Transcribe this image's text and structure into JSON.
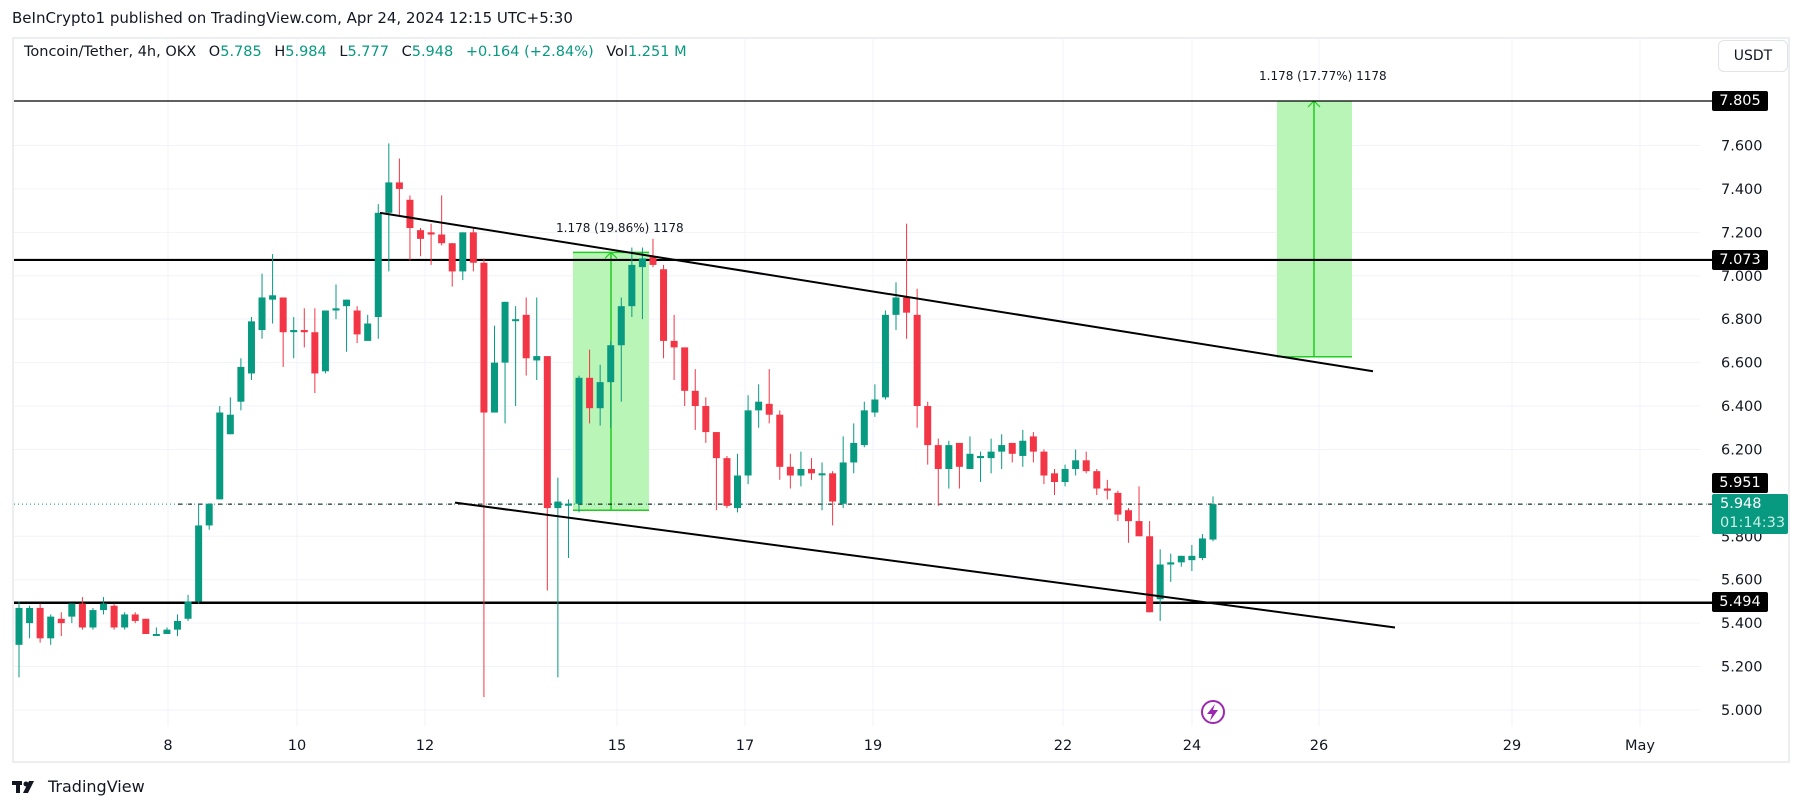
{
  "header": {
    "published": "BeInCrypto1 published on TradingView.com, Apr 24, 2024 12:15 UTC+5:30"
  },
  "legend": {
    "symbol": "Toncoin/Tether, 4h, OKX",
    "open_label": "O",
    "open": "5.785",
    "high_label": "H",
    "high": "5.984",
    "low_label": "L",
    "low": "5.777",
    "close_label": "C",
    "close": "5.948",
    "change": "+0.164 (+2.84%)",
    "vol_label": "Vol",
    "vol": "1.251 M"
  },
  "currency_button": "USDT",
  "price_tags": {
    "target": "7.805",
    "resistance": "7.073",
    "high_line": "5.951",
    "support": "5.494",
    "current_price": "5.948",
    "countdown": "01:14:33"
  },
  "annotations": {
    "measure_1": "1.178 (19.86%) 1178",
    "measure_2": "1.178 (17.77%) 1178"
  },
  "footer": {
    "brand": "TradingView"
  },
  "colors": {
    "up": "#089981",
    "down": "#f23645",
    "measure_fill": "#b9f5b7",
    "measure_line": "#22cc22",
    "flash_icon": "#9c27b0"
  },
  "chart_data": {
    "type": "candlestick",
    "title": "Toncoin/Tether, 4h, OKX",
    "xlabel": "",
    "ylabel": "USDT",
    "ylim": [
      4.9,
      7.95
    ],
    "y_ticks": [
      "7.600",
      "7.400",
      "7.200",
      "7.000",
      "6.800",
      "6.600",
      "6.400",
      "6.200",
      "5.800",
      "5.600",
      "5.400",
      "5.200",
      "5.000"
    ],
    "x_ticks": [
      "8",
      "10",
      "12",
      "15",
      "17",
      "19",
      "22",
      "24",
      "26",
      "29",
      "May"
    ],
    "grid": true,
    "horizontal_levels": [
      7.805,
      7.073,
      5.494
    ],
    "current_price": 5.948,
    "last_high_line": 5.951,
    "trendlines": [
      {
        "name": "upper channel",
        "from": {
          "date": "Apr 11.7",
          "price": 7.29
        },
        "to": {
          "date": "Apr 27.8",
          "price": 6.56
        }
      },
      {
        "name": "lower channel",
        "from": {
          "date": "Apr 12.5",
          "price": 5.95
        },
        "to": {
          "date": "Apr 28",
          "price": 5.38
        }
      }
    ],
    "measurements": [
      {
        "label": "1.178 (19.86%) 1178",
        "from_price": 5.93,
        "to_price": 7.108,
        "start": "Apr 14.5",
        "end": "Apr 15.6"
      },
      {
        "label": "1.178 (17.77%) 1178",
        "from_price": 6.627,
        "to_price": 7.805,
        "start": "Apr 25.4",
        "end": "Apr 26.5"
      }
    ],
    "candles": [
      {
        "o": 5.3,
        "h": 5.5,
        "l": 5.15,
        "c": 5.47
      },
      {
        "o": 5.4,
        "h": 5.48,
        "l": 5.33,
        "c": 5.47
      },
      {
        "o": 5.47,
        "h": 5.49,
        "l": 5.31,
        "c": 5.33
      },
      {
        "o": 5.33,
        "h": 5.44,
        "l": 5.3,
        "c": 5.43
      },
      {
        "o": 5.42,
        "h": 5.45,
        "l": 5.34,
        "c": 5.4
      },
      {
        "o": 5.43,
        "h": 5.49,
        "l": 5.4,
        "c": 5.49
      },
      {
        "o": 5.49,
        "h": 5.52,
        "l": 5.37,
        "c": 5.38
      },
      {
        "o": 5.38,
        "h": 5.47,
        "l": 5.37,
        "c": 5.46
      },
      {
        "o": 5.46,
        "h": 5.52,
        "l": 5.44,
        "c": 5.49
      },
      {
        "o": 5.48,
        "h": 5.49,
        "l": 5.37,
        "c": 5.38
      },
      {
        "o": 5.38,
        "h": 5.45,
        "l": 5.37,
        "c": 5.44
      },
      {
        "o": 5.44,
        "h": 5.45,
        "l": 5.4,
        "c": 5.41
      },
      {
        "o": 5.42,
        "h": 5.42,
        "l": 5.35,
        "c": 5.35
      },
      {
        "o": 5.35,
        "h": 5.38,
        "l": 5.35,
        "c": 5.35
      },
      {
        "o": 5.35,
        "h": 5.38,
        "l": 5.35,
        "c": 5.37
      },
      {
        "o": 5.37,
        "h": 5.44,
        "l": 5.34,
        "c": 5.41
      },
      {
        "o": 5.42,
        "h": 5.53,
        "l": 5.41,
        "c": 5.5
      },
      {
        "o": 5.5,
        "h": 5.95,
        "l": 5.49,
        "c": 5.85
      },
      {
        "o": 5.85,
        "h": 5.95,
        "l": 5.83,
        "c": 5.95
      },
      {
        "o": 5.97,
        "h": 6.4,
        "l": 5.97,
        "c": 6.37
      },
      {
        "o": 6.27,
        "h": 6.44,
        "l": 6.27,
        "c": 6.36
      },
      {
        "o": 6.42,
        "h": 6.62,
        "l": 6.38,
        "c": 6.58
      },
      {
        "o": 6.55,
        "h": 6.81,
        "l": 6.52,
        "c": 6.79
      },
      {
        "o": 6.75,
        "h": 7.01,
        "l": 6.71,
        "c": 6.9
      },
      {
        "o": 6.89,
        "h": 7.1,
        "l": 6.78,
        "c": 6.91
      },
      {
        "o": 6.9,
        "h": 6.9,
        "l": 6.58,
        "c": 6.74
      },
      {
        "o": 6.74,
        "h": 6.81,
        "l": 6.62,
        "c": 6.75
      },
      {
        "o": 6.75,
        "h": 6.85,
        "l": 6.67,
        "c": 6.74
      },
      {
        "o": 6.74,
        "h": 6.85,
        "l": 6.46,
        "c": 6.55
      },
      {
        "o": 6.56,
        "h": 6.83,
        "l": 6.55,
        "c": 6.84
      },
      {
        "o": 6.84,
        "h": 6.96,
        "l": 6.8,
        "c": 6.85
      },
      {
        "o": 6.86,
        "h": 6.89,
        "l": 6.65,
        "c": 6.89
      },
      {
        "o": 6.84,
        "h": 6.86,
        "l": 6.69,
        "c": 6.73
      },
      {
        "o": 6.7,
        "h": 6.82,
        "l": 6.7,
        "c": 6.78
      },
      {
        "o": 6.81,
        "h": 7.33,
        "l": 6.71,
        "c": 7.29
      },
      {
        "o": 7.29,
        "h": 7.61,
        "l": 7.02,
        "c": 7.43
      },
      {
        "o": 7.43,
        "h": 7.54,
        "l": 7.28,
        "c": 7.4
      },
      {
        "o": 7.35,
        "h": 7.37,
        "l": 7.07,
        "c": 7.22
      },
      {
        "o": 7.21,
        "h": 7.22,
        "l": 7.09,
        "c": 7.17
      },
      {
        "o": 7.2,
        "h": 7.24,
        "l": 7.05,
        "c": 7.19
      },
      {
        "o": 7.19,
        "h": 7.37,
        "l": 7.14,
        "c": 7.15
      },
      {
        "o": 7.15,
        "h": 7.15,
        "l": 6.95,
        "c": 7.02
      },
      {
        "o": 7.02,
        "h": 7.2,
        "l": 6.98,
        "c": 7.2
      },
      {
        "o": 7.2,
        "h": 7.22,
        "l": 7.02,
        "c": 7.06
      },
      {
        "o": 7.06,
        "h": 7.08,
        "l": 5.06,
        "c": 6.37
      },
      {
        "o": 6.37,
        "h": 6.77,
        "l": 6.37,
        "c": 6.6
      },
      {
        "o": 6.6,
        "h": 6.83,
        "l": 6.32,
        "c": 6.88
      },
      {
        "o": 6.8,
        "h": 6.86,
        "l": 6.4,
        "c": 6.8
      },
      {
        "o": 6.82,
        "h": 6.9,
        "l": 6.54,
        "c": 6.62
      },
      {
        "o": 6.61,
        "h": 6.9,
        "l": 6.52,
        "c": 6.63
      },
      {
        "o": 6.63,
        "h": 6.6,
        "l": 5.55,
        "c": 5.93
      },
      {
        "o": 5.93,
        "h": 6.07,
        "l": 5.15,
        "c": 5.96
      },
      {
        "o": 5.95,
        "h": 5.97,
        "l": 5.7,
        "c": 5.95
      },
      {
        "o": 5.95,
        "h": 6.54,
        "l": 5.91,
        "c": 6.53
      },
      {
        "o": 6.53,
        "h": 6.66,
        "l": 6.32,
        "c": 6.39
      },
      {
        "o": 6.39,
        "h": 6.59,
        "l": 6.31,
        "c": 6.51
      },
      {
        "o": 6.51,
        "h": 6.7,
        "l": 6.3,
        "c": 6.68
      },
      {
        "o": 6.68,
        "h": 6.9,
        "l": 6.42,
        "c": 6.86
      },
      {
        "o": 6.86,
        "h": 7.13,
        "l": 6.81,
        "c": 7.05
      },
      {
        "o": 7.04,
        "h": 7.13,
        "l": 6.8,
        "c": 7.08
      },
      {
        "o": 7.09,
        "h": 7.17,
        "l": 7.04,
        "c": 7.05
      },
      {
        "o": 7.03,
        "h": 7.05,
        "l": 6.62,
        "c": 6.7
      },
      {
        "o": 6.7,
        "h": 6.82,
        "l": 6.52,
        "c": 6.67
      },
      {
        "o": 6.67,
        "h": 6.65,
        "l": 6.4,
        "c": 6.47
      },
      {
        "o": 6.47,
        "h": 6.57,
        "l": 6.29,
        "c": 6.4
      },
      {
        "o": 6.4,
        "h": 6.44,
        "l": 6.23,
        "c": 6.28
      },
      {
        "o": 6.28,
        "h": 6.27,
        "l": 5.92,
        "c": 6.16
      },
      {
        "o": 6.16,
        "h": 6.17,
        "l": 5.93,
        "c": 5.94
      },
      {
        "o": 5.93,
        "h": 6.18,
        "l": 5.91,
        "c": 6.08
      },
      {
        "o": 6.08,
        "h": 6.45,
        "l": 6.04,
        "c": 6.38
      },
      {
        "o": 6.38,
        "h": 6.5,
        "l": 6.3,
        "c": 6.42
      },
      {
        "o": 6.41,
        "h": 6.57,
        "l": 6.32,
        "c": 6.36
      },
      {
        "o": 6.36,
        "h": 6.38,
        "l": 6.06,
        "c": 6.12
      },
      {
        "o": 6.12,
        "h": 6.18,
        "l": 6.02,
        "c": 6.08
      },
      {
        "o": 6.08,
        "h": 6.19,
        "l": 6.03,
        "c": 6.11
      },
      {
        "o": 6.11,
        "h": 6.16,
        "l": 6.06,
        "c": 6.09
      },
      {
        "o": 6.09,
        "h": 6.14,
        "l": 5.92,
        "c": 6.09
      },
      {
        "o": 6.09,
        "h": 6.1,
        "l": 5.85,
        "c": 5.96
      },
      {
        "o": 5.95,
        "h": 6.26,
        "l": 5.93,
        "c": 6.14
      },
      {
        "o": 6.14,
        "h": 6.32,
        "l": 6.09,
        "c": 6.23
      },
      {
        "o": 6.22,
        "h": 6.42,
        "l": 6.21,
        "c": 6.38
      },
      {
        "o": 6.37,
        "h": 6.5,
        "l": 6.35,
        "c": 6.43
      },
      {
        "o": 6.44,
        "h": 6.84,
        "l": 6.43,
        "c": 6.82
      },
      {
        "o": 6.82,
        "h": 6.97,
        "l": 6.75,
        "c": 6.9
      },
      {
        "o": 6.9,
        "h": 7.24,
        "l": 6.71,
        "c": 6.83
      },
      {
        "o": 6.82,
        "h": 6.94,
        "l": 6.3,
        "c": 6.4
      },
      {
        "o": 6.4,
        "h": 6.42,
        "l": 6.13,
        "c": 6.22
      },
      {
        "o": 6.22,
        "h": 6.25,
        "l": 5.94,
        "c": 6.11
      },
      {
        "o": 6.11,
        "h": 6.24,
        "l": 6.02,
        "c": 6.22
      },
      {
        "o": 6.23,
        "h": 6.2,
        "l": 6.02,
        "c": 6.12
      },
      {
        "o": 6.11,
        "h": 6.26,
        "l": 6.12,
        "c": 6.18
      },
      {
        "o": 6.16,
        "h": 6.19,
        "l": 6.05,
        "c": 6.17
      },
      {
        "o": 6.16,
        "h": 6.25,
        "l": 6.09,
        "c": 6.19
      },
      {
        "o": 6.19,
        "h": 6.27,
        "l": 6.11,
        "c": 6.22
      },
      {
        "o": 6.23,
        "h": 6.2,
        "l": 6.14,
        "c": 6.18
      },
      {
        "o": 6.17,
        "h": 6.29,
        "l": 6.12,
        "c": 6.24
      },
      {
        "o": 6.26,
        "h": 6.28,
        "l": 6.14,
        "c": 6.19
      },
      {
        "o": 6.19,
        "h": 6.2,
        "l": 6.04,
        "c": 6.08
      },
      {
        "o": 6.09,
        "h": 6.11,
        "l": 5.99,
        "c": 6.05
      },
      {
        "o": 6.05,
        "h": 6.13,
        "l": 6.03,
        "c": 6.11
      },
      {
        "o": 6.11,
        "h": 6.2,
        "l": 6.08,
        "c": 6.15
      },
      {
        "o": 6.15,
        "h": 6.19,
        "l": 6.09,
        "c": 6.1
      },
      {
        "o": 6.1,
        "h": 6.11,
        "l": 5.99,
        "c": 6.02
      },
      {
        "o": 6.02,
        "h": 6.06,
        "l": 5.97,
        "c": 6.01
      },
      {
        "o": 6.0,
        "h": 6.01,
        "l": 5.87,
        "c": 5.9
      },
      {
        "o": 5.92,
        "h": 5.93,
        "l": 5.77,
        "c": 5.87
      },
      {
        "o": 5.87,
        "h": 6.03,
        "l": 5.86,
        "c": 5.8
      },
      {
        "o": 5.8,
        "h": 5.87,
        "l": 5.45,
        "c": 5.45
      },
      {
        "o": 5.51,
        "h": 5.74,
        "l": 5.41,
        "c": 5.67
      },
      {
        "o": 5.67,
        "h": 5.72,
        "l": 5.59,
        "c": 5.68
      },
      {
        "o": 5.68,
        "h": 5.71,
        "l": 5.66,
        "c": 5.71
      },
      {
        "o": 5.69,
        "h": 5.76,
        "l": 5.64,
        "c": 5.71
      },
      {
        "o": 5.7,
        "h": 5.81,
        "l": 5.69,
        "c": 5.79
      },
      {
        "o": 5.785,
        "h": 5.984,
        "l": 5.777,
        "c": 5.948
      }
    ]
  }
}
